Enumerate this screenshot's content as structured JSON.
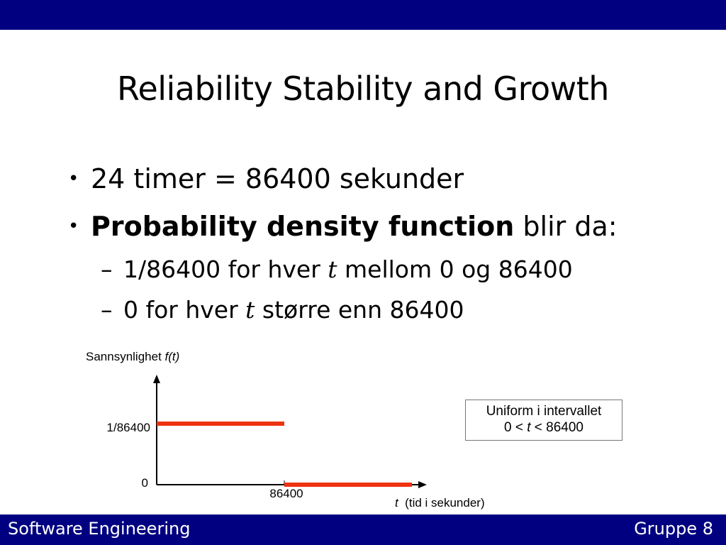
{
  "slide": {
    "title": "Reliability Stability and Growth",
    "bullets": [
      {
        "marker": "•",
        "text": "24 timer = 86400 sekunder"
      },
      {
        "marker": "•",
        "bold": "Probability density function",
        "rest": " blir da:"
      }
    ],
    "subbullets": [
      {
        "marker": "–",
        "pre": "1/86400 for hver ",
        "ital": "t",
        "post": " mellom 0 og 86400"
      },
      {
        "marker": "–",
        "pre": "0 for hver ",
        "ital": "t",
        "post": " større enn 86400"
      }
    ]
  },
  "chart_data": {
    "type": "line",
    "ylabel_text": "Sannsynlighet ",
    "ylabel_ital": "f(t)",
    "xlabel_ital": "t",
    "xlabel_text": "  (tid i sekunder)",
    "y_ticks": [
      "1/86400",
      "0"
    ],
    "x_ticks": [
      "86400"
    ],
    "segments": [
      {
        "x": [
          0,
          86400
        ],
        "y": [
          1.1574e-05,
          1.1574e-05
        ]
      },
      {
        "x": [
          86400,
          172800
        ],
        "y": [
          0,
          0
        ]
      }
    ],
    "xlim": [
      0,
      172800
    ],
    "annotation": {
      "line1": "Uniform i intervallet",
      "line2_pre": "0 < ",
      "line2_ital": "t",
      "line2_post": " < 86400"
    },
    "colors": {
      "series": "#ee3311",
      "axis": "#000000"
    }
  },
  "footer": {
    "left": "Software Engineering",
    "right": "Gruppe 8"
  },
  "colors": {
    "bar": "#000080"
  }
}
